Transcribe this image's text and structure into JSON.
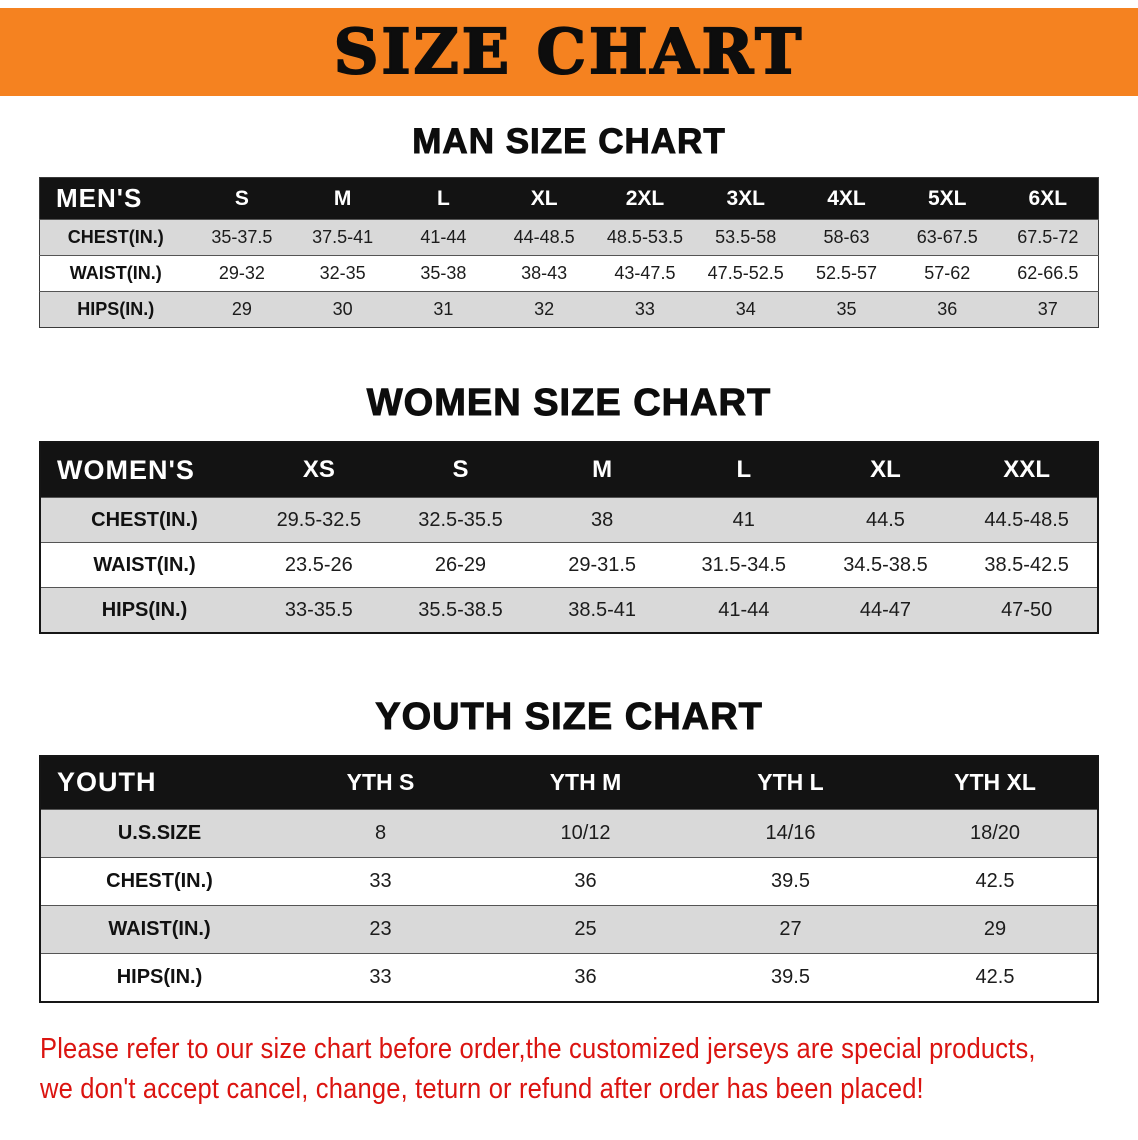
{
  "banner": {
    "title": "SIZE CHART",
    "bg_color": "#F58220",
    "text_color": "#0D0D0D"
  },
  "sections": [
    {
      "heading": "MAN SIZE CHART",
      "table": {
        "header": [
          "MEN'S",
          "S",
          "M",
          "L",
          "XL",
          "2XL",
          "3XL",
          "4XL",
          "5XL",
          "6XL"
        ],
        "rows": [
          [
            "CHEST(IN.)",
            "35-37.5",
            "37.5-41",
            "41-44",
            "44-48.5",
            "48.5-53.5",
            "53.5-58",
            "58-63",
            "63-67.5",
            "67.5-72"
          ],
          [
            "WAIST(IN.)",
            "29-32",
            "32-35",
            "35-38",
            "38-43",
            "43-47.5",
            "47.5-52.5",
            "52.5-57",
            "57-62",
            "62-66.5"
          ],
          [
            "HIPS(IN.)",
            "29",
            "30",
            "31",
            "32",
            "33",
            "34",
            "35",
            "36",
            "37"
          ]
        ]
      }
    },
    {
      "heading": "WOMEN SIZE CHART",
      "table": {
        "header": [
          "WOMEN'S",
          "XS",
          "S",
          "M",
          "L",
          "XL",
          "XXL"
        ],
        "rows": [
          [
            "CHEST(IN.)",
            "29.5-32.5",
            "32.5-35.5",
            "38",
            "41",
            "44.5",
            "44.5-48.5"
          ],
          [
            "WAIST(IN.)",
            "23.5-26",
            "26-29",
            "29-31.5",
            "31.5-34.5",
            "34.5-38.5",
            "38.5-42.5"
          ],
          [
            "HIPS(IN.)",
            "33-35.5",
            "35.5-38.5",
            "38.5-41",
            "41-44",
            "44-47",
            "47-50"
          ]
        ]
      }
    },
    {
      "heading": "YOUTH SIZE CHART",
      "table": {
        "header": [
          "YOUTH",
          "YTH S",
          "YTH M",
          "YTH L",
          "YTH XL"
        ],
        "rows": [
          [
            "U.S.SIZE",
            "8",
            "10/12",
            "14/16",
            "18/20"
          ],
          [
            "CHEST(IN.)",
            "33",
            "36",
            "39.5",
            "42.5"
          ],
          [
            "WAIST(IN.)",
            "23",
            "25",
            "27",
            "29"
          ],
          [
            "HIPS(IN.)",
            "33",
            "36",
            "39.5",
            "42.5"
          ]
        ]
      }
    }
  ],
  "disclaimer": {
    "line1": "Please refer to our size chart before order,the customized jerseys are special products,",
    "line2": "we don't accept cancel, change, teturn or refund after order has been placed!",
    "text_color": "#DB1410"
  },
  "colors": {
    "banner_orange": "#F58220",
    "table_header_bg": "#131313",
    "table_header_text": "#FFFFFF",
    "row_stripe_gray": "#D9D9D9",
    "disclaimer_red": "#DB1410"
  }
}
